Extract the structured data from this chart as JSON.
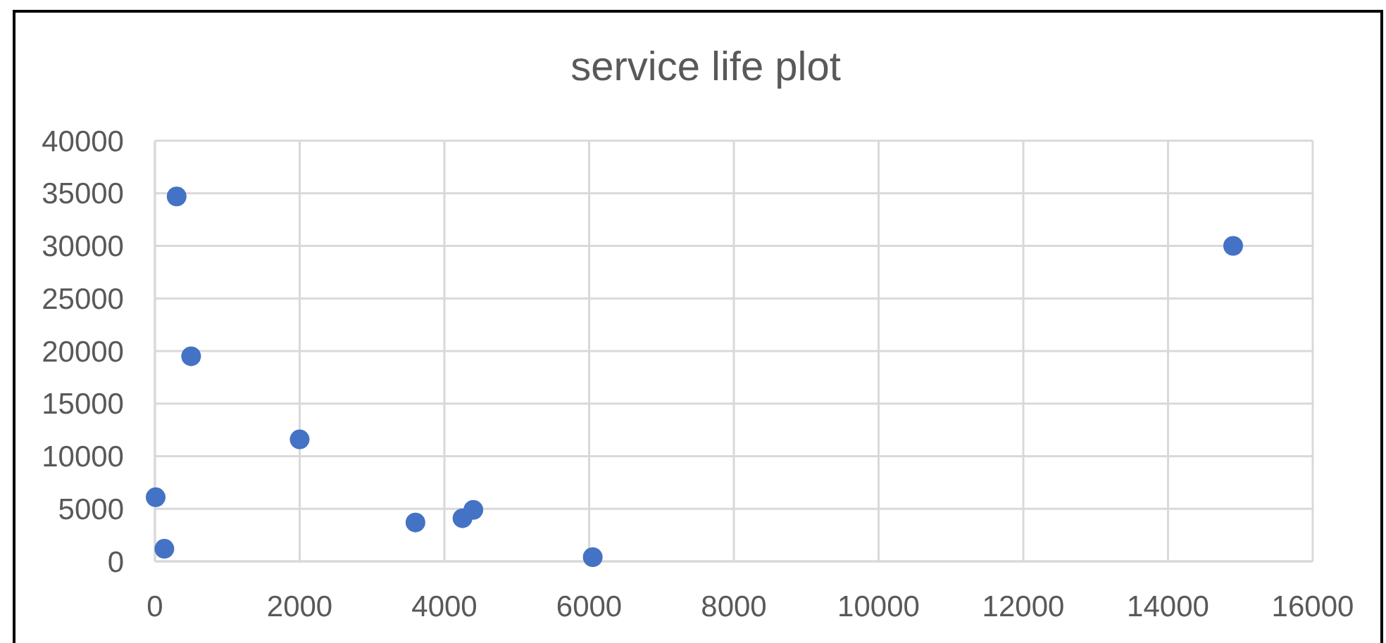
{
  "chart_data": {
    "type": "scatter",
    "title": "service life plot",
    "x": [
      10,
      130,
      300,
      500,
      2000,
      3600,
      4250,
      4400,
      6050,
      14900
    ],
    "values": [
      6100,
      1200,
      34700,
      19500,
      11600,
      3700,
      4100,
      4900,
      400,
      30000
    ],
    "color": "#4472c4",
    "marker": "circle",
    "xlim": [
      0,
      16000
    ],
    "xticks": [
      0,
      2000,
      4000,
      6000,
      8000,
      10000,
      12000,
      14000,
      16000
    ],
    "ylim": [
      0,
      40000
    ],
    "yticks": [
      0,
      5000,
      10000,
      15000,
      20000,
      25000,
      30000,
      35000,
      40000
    ],
    "grid": true
  }
}
